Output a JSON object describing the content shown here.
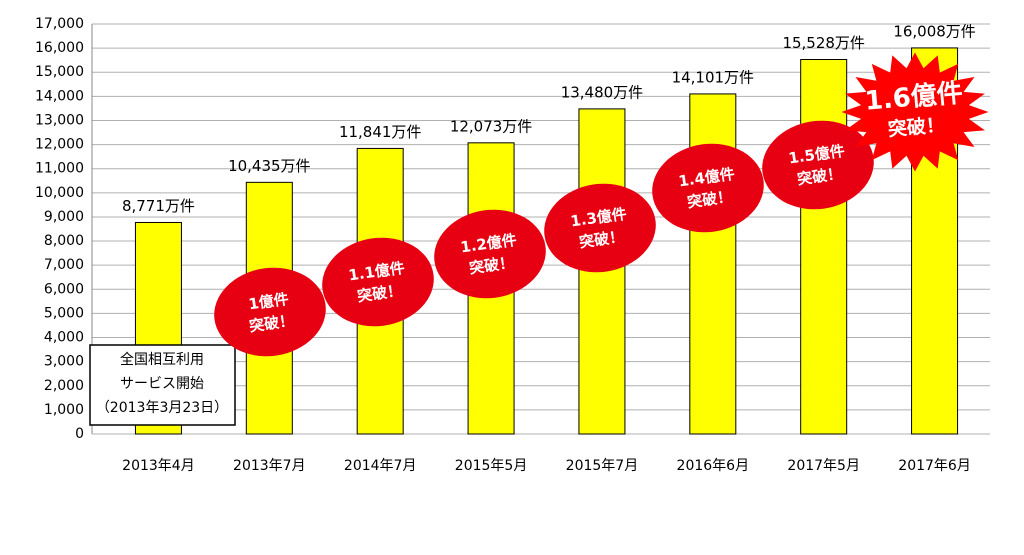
{
  "chart_data": {
    "type": "bar",
    "categories": [
      "2013年4月",
      "2013年7月",
      "2014年7月",
      "2015年5月",
      "2015年7月",
      "2016年6月",
      "2017年5月",
      "2017年6月"
    ],
    "values": [
      8771,
      10435,
      11841,
      12073,
      13480,
      14101,
      15528,
      16008
    ],
    "value_labels": [
      "8,771万件",
      "10,435万件",
      "11,841万件",
      "12,073万件",
      "13,480万件",
      "14,101万件",
      "15,528万件",
      "16,008万件"
    ],
    "color": "#ffff00",
    "ylim": [
      0,
      17000
    ],
    "yticks": [
      0,
      {
        "value": 1000,
        "label": "1,000"
      },
      {
        "value": 2000,
        "label": "2,000"
      },
      {
        "value": 3000,
        "label": "3,000"
      },
      {
        "value": 4000,
        "label": "4,000"
      },
      {
        "value": 5000,
        "label": "5,000"
      },
      {
        "value": 6000,
        "label": "6,000"
      },
      {
        "value": 7000,
        "label": "7,000"
      },
      {
        "value": 8000,
        "label": "8,000"
      },
      {
        "value": 9000,
        "label": "9,000"
      },
      {
        "value": 10000,
        "label": "10,000"
      },
      {
        "value": 11000,
        "label": "11,000"
      },
      {
        "value": 12000,
        "label": "12,000"
      },
      {
        "value": 13000,
        "label": "13,000"
      },
      {
        "value": 14000,
        "label": "14,000"
      },
      {
        "value": 15000,
        "label": "15,000"
      },
      {
        "value": 16000,
        "label": "16,000"
      },
      {
        "value": 17000,
        "label": "17,000"
      }
    ],
    "grid": true,
    "note": [
      "全国相互利用",
      "サービス開始",
      "（2013年3月23日）"
    ],
    "badges": [
      [
        "1億件",
        "突破！"
      ],
      [
        "1.1億件",
        "突破！"
      ],
      [
        "1.2億件",
        "突破！"
      ],
      [
        "1.3億件",
        "突破！"
      ],
      [
        "1.4億件",
        "突破！"
      ],
      [
        "1.5億件",
        "突破！"
      ]
    ],
    "burst": [
      "1.6億件",
      "突破！"
    ]
  }
}
